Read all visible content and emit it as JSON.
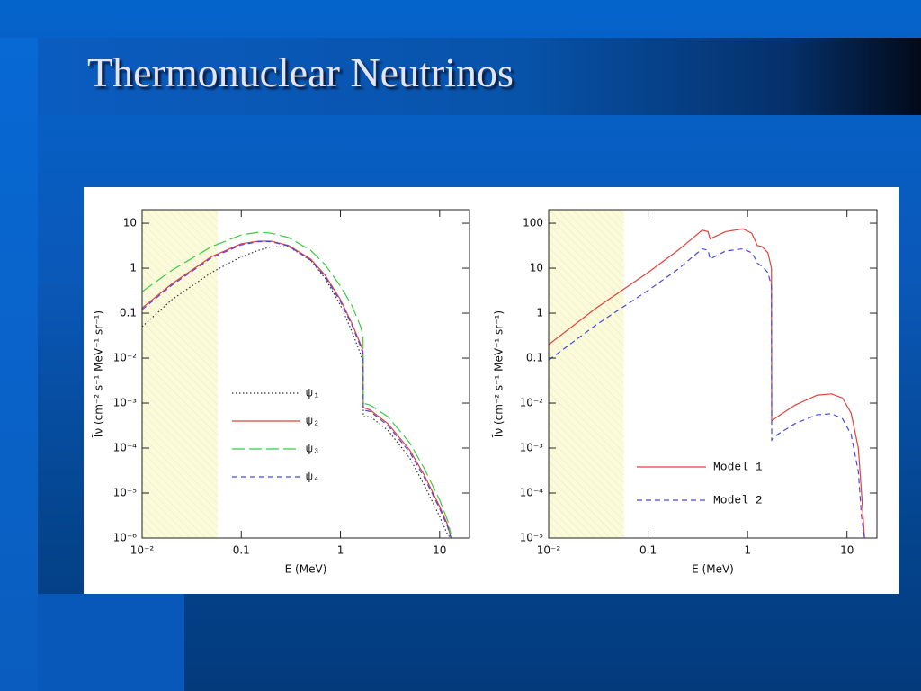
{
  "slide": {
    "title": "Thermonuclear Neutrinos"
  },
  "chart_data": [
    {
      "type": "line",
      "xscale": "log",
      "yscale": "log",
      "xlabel": "E (MeV)",
      "ylabel": "Īν (cm⁻² s⁻¹ MeV⁻¹ sr⁻¹)",
      "xlim": [
        0.01,
        20
      ],
      "ylim": [
        1e-06,
        20
      ],
      "xticks": [
        {
          "value": 0.01,
          "label": "10⁻²"
        },
        0.1,
        1,
        10
      ],
      "yticks": [
        {
          "value": 1e-06,
          "label": "10⁻⁶"
        },
        {
          "value": 1e-05,
          "label": "10⁻⁵"
        },
        {
          "value": 0.0001,
          "label": "10⁻⁴"
        },
        {
          "value": 0.001,
          "label": "10⁻³"
        },
        {
          "value": 0.01,
          "label": "10⁻²"
        },
        0.1,
        1,
        10
      ],
      "shaded_region": [
        0.01,
        0.058
      ],
      "x": [
        0.01,
        0.02,
        0.05,
        0.1,
        0.15,
        0.2,
        0.3,
        0.5,
        0.7,
        1,
        1.3,
        1.6,
        1.69,
        1.7,
        2,
        3,
        5,
        7,
        10,
        12,
        13
      ],
      "series": [
        {
          "name": "ψ₁",
          "color": "#333333",
          "dash": "dotted",
          "values": [
            0.05,
            0.2,
            0.8,
            1.8,
            2.5,
            3,
            3,
            1.5,
            0.6,
            0.15,
            0.04,
            0.012,
            0.008,
            0.0005,
            0.0005,
            0.00025,
            6e-05,
            1.5e-05,
            3e-06,
            1.2e-06,
            1e-06
          ]
        },
        {
          "name": "ψ₂",
          "color": "#e0413c",
          "dash": "solid",
          "values": [
            0.13,
            0.45,
            1.8,
            3.5,
            4,
            4,
            3.2,
            1.6,
            0.7,
            0.2,
            0.06,
            0.02,
            0.014,
            0.0008,
            0.0007,
            0.00035,
            9e-05,
            2.5e-05,
            5e-06,
            2e-06,
            1e-06
          ]
        },
        {
          "name": "ψ₃",
          "color": "#3acc44",
          "dash": "long",
          "values": [
            0.3,
            0.9,
            3,
            5.5,
            6.3,
            6,
            4.8,
            2.5,
            1.2,
            0.4,
            0.15,
            0.05,
            0.03,
            0.001,
            0.0009,
            0.0005,
            0.00013,
            3.5e-05,
            7e-06,
            2.5e-06,
            1.2e-06
          ]
        },
        {
          "name": "ψ₄",
          "color": "#4848e0",
          "dash": "short",
          "values": [
            0.12,
            0.42,
            1.7,
            3.3,
            3.9,
            3.9,
            3.1,
            1.5,
            0.65,
            0.18,
            0.055,
            0.018,
            0.012,
            0.0007,
            0.00065,
            0.00032,
            8e-05,
            2.2e-05,
            4.5e-06,
            1.8e-06,
            1e-06
          ]
        }
      ]
    },
    {
      "type": "line",
      "xscale": "log",
      "yscale": "log",
      "xlabel": "E (MeV)",
      "ylabel": "Īν (cm⁻² s⁻¹ MeV⁻¹ sr⁻¹)",
      "xlim": [
        0.01,
        20
      ],
      "ylim": [
        1e-05,
        200
      ],
      "xticks": [
        {
          "value": 0.01,
          "label": "10⁻²"
        },
        0.1,
        1,
        10
      ],
      "yticks": [
        {
          "value": 1e-05,
          "label": "10⁻⁵"
        },
        {
          "value": 0.0001,
          "label": "10⁻⁴"
        },
        {
          "value": 0.001,
          "label": "10⁻³"
        },
        {
          "value": 0.01,
          "label": "10⁻²"
        },
        0.1,
        1,
        10,
        100
      ],
      "shaded_region": [
        0.01,
        0.057
      ],
      "x": [
        0.01,
        0.03,
        0.1,
        0.2,
        0.35,
        0.4,
        0.42,
        0.6,
        0.9,
        1.1,
        1.2,
        1.25,
        1.4,
        1.6,
        1.74,
        1.75,
        2,
        3,
        5,
        7,
        9,
        11,
        13,
        14,
        15
      ],
      "series": [
        {
          "name": "Model 1",
          "color": "#e0413c",
          "dash": "solid",
          "values": [
            0.2,
            1.3,
            8,
            25,
            70,
            65,
            45,
            65,
            75,
            60,
            40,
            32,
            30,
            22,
            10,
            0.004,
            0.005,
            0.009,
            0.015,
            0.016,
            0.013,
            0.006,
            0.001,
            0.0001,
            1e-05
          ]
        },
        {
          "name": "Model 2",
          "color": "#4848e0",
          "dash": "short",
          "values": [
            0.09,
            0.55,
            3.2,
            9.5,
            27,
            25,
            16,
            24,
            27,
            22,
            16,
            13,
            11,
            8,
            4,
            0.0015,
            0.002,
            0.0035,
            0.0055,
            0.0058,
            0.0045,
            0.002,
            0.0003,
            3e-05,
            1e-05
          ]
        }
      ]
    }
  ]
}
